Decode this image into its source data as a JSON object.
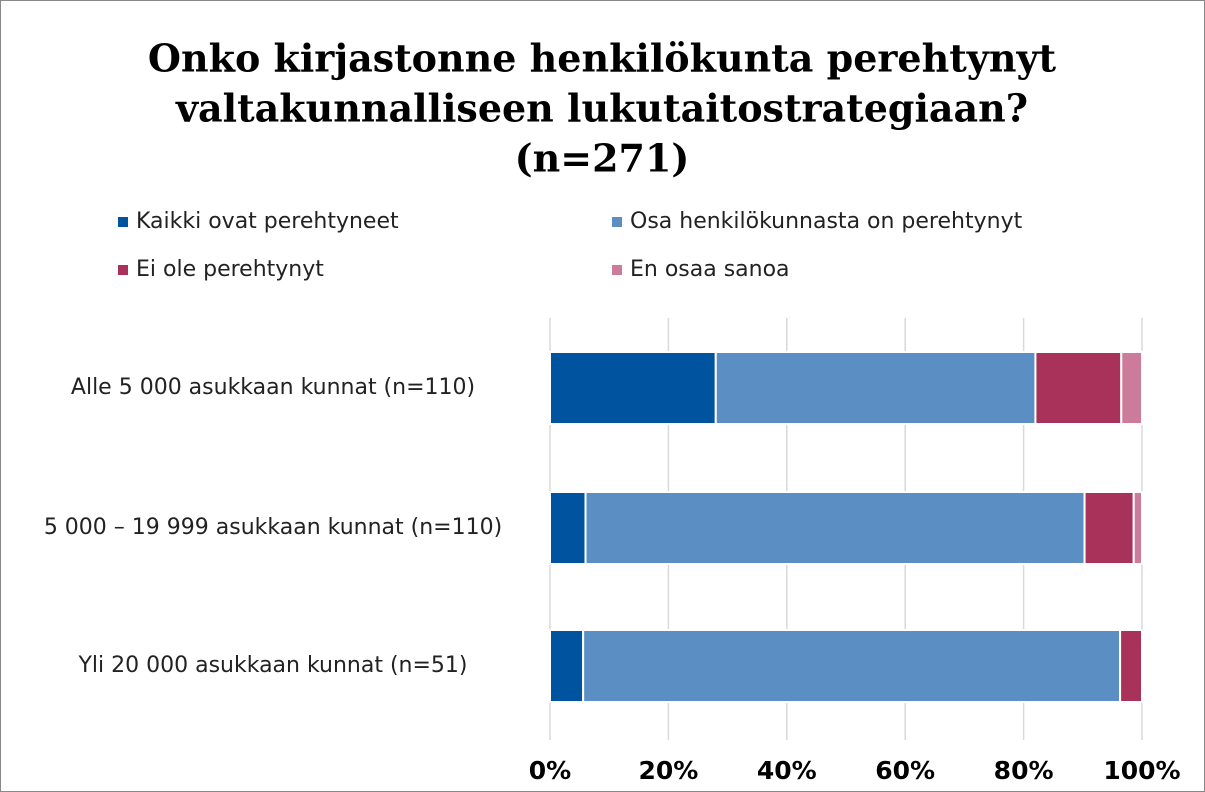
{
  "chart_data": {
    "type": "stacked_barh",
    "title": [
      "Onko kirjastonne henkilökunta perehtynyt",
      "valtakunnalliseen lukutaitostrategiaan?",
      "(n=271)"
    ],
    "categories": [
      "Alle 5 000 asukkaan kunnat (n=110)",
      "5 000 – 19 999 asukkaan kunnat (n=110)",
      "Yli 20 000 asukkaan kunnat (n=51)"
    ],
    "series": [
      {
        "name": "Kaikki ovat perehtyneet",
        "color": "#00549f",
        "values": [
          28,
          6,
          5.6
        ]
      },
      {
        "name": "Osa henkilökunnasta on perehtynyt",
        "color": "#5b8fc4",
        "values": [
          54,
          84.3,
          90.7
        ]
      },
      {
        "name": "Ei ole perehtynyt",
        "color": "#a8325a",
        "values": [
          14.5,
          8.3,
          3.7
        ]
      },
      {
        "name": "En osaa sanoa",
        "color": "#cc7b9a",
        "values": [
          3.5,
          1.4,
          0
        ]
      }
    ],
    "xlim": [
      0,
      100
    ],
    "xticks": [
      {
        "value": 0,
        "label": "0%"
      },
      {
        "value": 20,
        "label": "20%"
      },
      {
        "value": 40,
        "label": "40%"
      },
      {
        "value": 60,
        "label": "60%"
      },
      {
        "value": 80,
        "label": "80%"
      },
      {
        "value": 100,
        "label": "100%"
      }
    ],
    "grid": true,
    "legend": "top"
  }
}
